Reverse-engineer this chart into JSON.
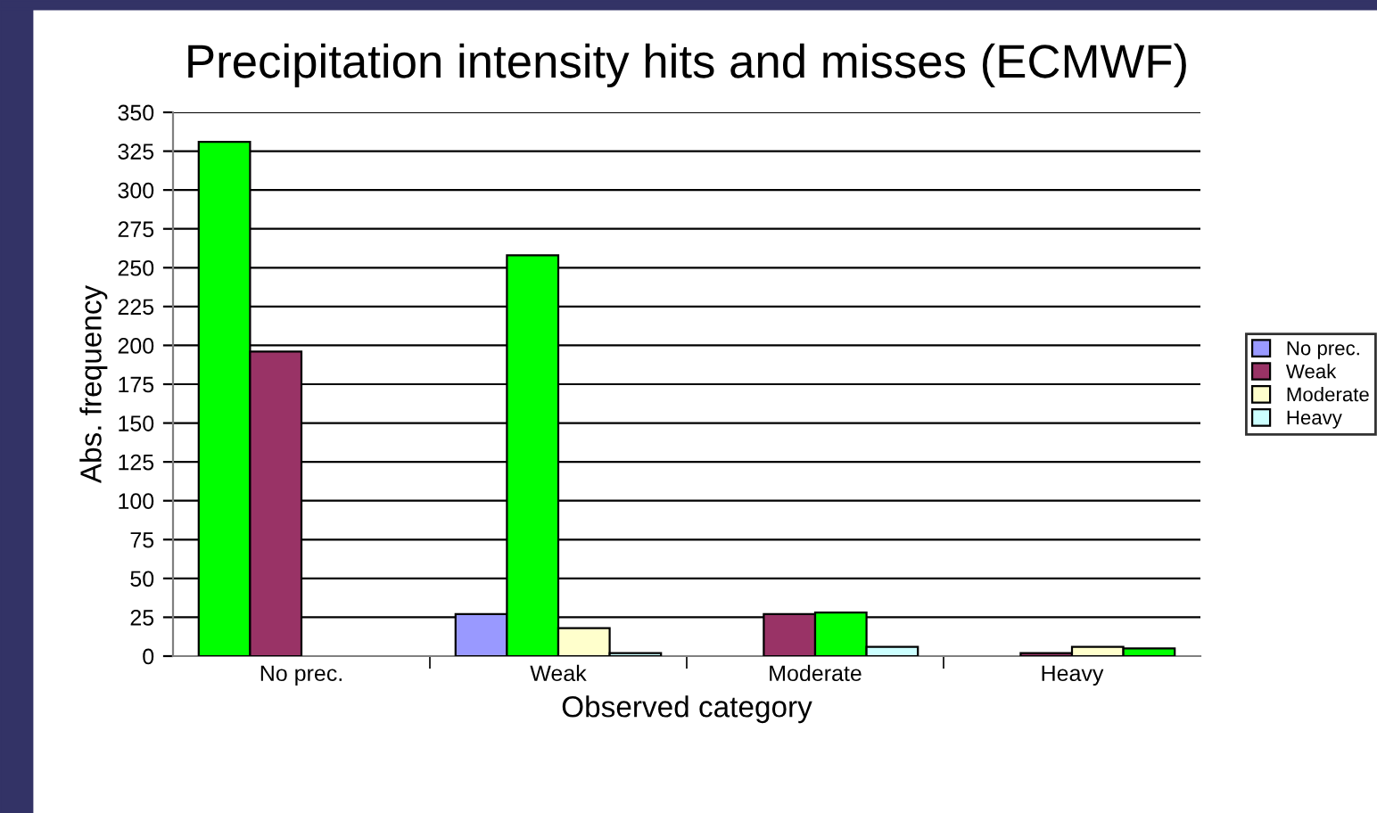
{
  "chart_data": {
    "type": "bar",
    "title": "Precipitation intensity hits and misses (ECMWF)",
    "xlabel": "Observed category",
    "ylabel": "Abs. frequency",
    "categories": [
      "No prec.",
      "Weak",
      "Moderate",
      "Heavy"
    ],
    "series": [
      {
        "name": "No prec.",
        "color": "#9999ff",
        "colors": [
          "#00ff00",
          "#9999ff",
          "#9999ff",
          "#9999ff"
        ],
        "values": [
          331,
          27,
          0,
          0
        ]
      },
      {
        "name": "Weak",
        "color": "#993366",
        "colors": [
          "#993366",
          "#00ff00",
          "#993366",
          "#993366"
        ],
        "values": [
          196,
          258,
          27,
          2
        ]
      },
      {
        "name": "Moderate",
        "color": "#ffffcc",
        "colors": [
          "#ffffcc",
          "#ffffcc",
          "#00ff00",
          "#ffffcc"
        ],
        "values": [
          0,
          18,
          28,
          6
        ]
      },
      {
        "name": "Heavy",
        "color": "#ccffff",
        "colors": [
          "#ccffff",
          "#ccffff",
          "#ccffff",
          "#00ff00"
        ],
        "values": [
          0,
          2,
          6,
          5
        ]
      }
    ],
    "ylim": [
      0,
      350
    ],
    "yticks": [
      0,
      25,
      50,
      75,
      100,
      125,
      150,
      175,
      200,
      225,
      250,
      275,
      300,
      325,
      350
    ],
    "grid": "y",
    "legend": "right"
  }
}
